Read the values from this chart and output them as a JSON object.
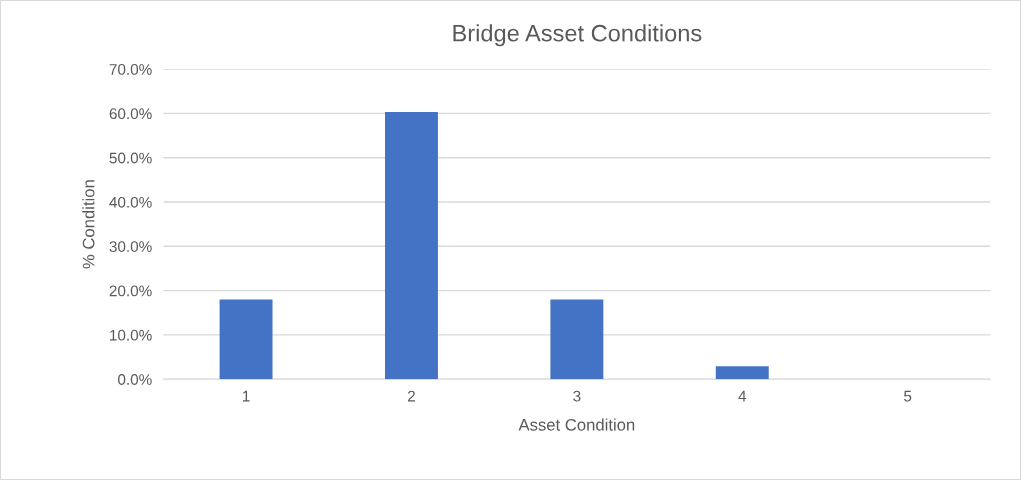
{
  "chart_data": {
    "type": "bar",
    "title": "Bridge Asset Conditions",
    "xlabel": "Asset Condition",
    "ylabel": "% Condition",
    "categories": [
      "1",
      "2",
      "3",
      "4",
      "5"
    ],
    "values": [
      18.0,
      60.3,
      18.0,
      2.9,
      0
    ],
    "color": "#4472c4",
    "ylim": [
      0,
      70
    ],
    "yticks": [
      {
        "value": 0,
        "label": "0.0%"
      },
      {
        "value": 10,
        "label": "10.0%"
      },
      {
        "value": 20,
        "label": "20.0%"
      },
      {
        "value": 30,
        "label": "30.0%"
      },
      {
        "value": 40,
        "label": "40.0%"
      },
      {
        "value": 50,
        "label": "50.0%"
      },
      {
        "value": 60,
        "label": "60.0%"
      },
      {
        "value": 70,
        "label": "70.0%"
      }
    ],
    "grid": "y"
  }
}
